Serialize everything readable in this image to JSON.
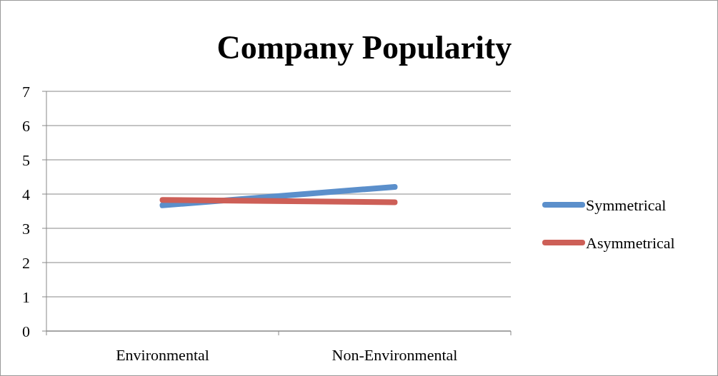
{
  "chart_data": {
    "type": "line",
    "title": "Company Popularity",
    "categories": [
      "Environmental",
      "Non-Environmental"
    ],
    "series": [
      {
        "name": "Symmetrical",
        "color": "#5b8fcb",
        "values": [
          3.67,
          4.21
        ]
      },
      {
        "name": "Asymmetrical",
        "color": "#cd5f57",
        "values": [
          3.83,
          3.76
        ]
      }
    ],
    "ylim": [
      0,
      7
    ],
    "yticks": [
      0,
      1,
      2,
      3,
      4,
      5,
      6,
      7
    ],
    "grid": "y",
    "legend": "right",
    "line_style": "solid"
  }
}
